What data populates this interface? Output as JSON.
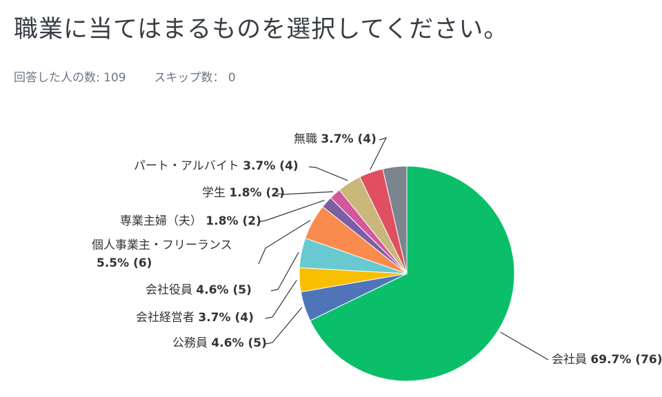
{
  "question": "職業に当てはまるものを選択してください。",
  "stats": {
    "answered_label": "回答した人の数:",
    "answered_count": "109",
    "skipped_label": "スキップ数：",
    "skipped_count": "0"
  },
  "chart_data": {
    "type": "pie",
    "start": "12 o'clock",
    "direction": "clockwise",
    "slices": [
      {
        "name": "会社員",
        "percent": 69.7,
        "count": 76,
        "pct_label": "69.7% (76)",
        "color": "#0bbf6a"
      },
      {
        "name": "公務員",
        "percent": 4.6,
        "count": 5,
        "pct_label": "4.6% (5)",
        "color": "#4f75b8"
      },
      {
        "name": "会社経営者",
        "percent": 3.7,
        "count": 4,
        "pct_label": "3.7% (4)",
        "color": "#f8bf00"
      },
      {
        "name": "会社役員",
        "percent": 4.6,
        "count": 5,
        "pct_label": "4.6% (5)",
        "color": "#68c9d0"
      },
      {
        "name": "個人事業主・フリーランス",
        "percent": 5.5,
        "count": 6,
        "pct_label": "5.5% (6)",
        "color": "#f88b4d"
      },
      {
        "name": "専業主婦（夫）",
        "percent": 1.8,
        "count": 2,
        "pct_label": "1.8% (2)",
        "color": "#7b5ea3"
      },
      {
        "name": "学生",
        "percent": 1.8,
        "count": 2,
        "pct_label": "1.8% (2)",
        "color": "#d25a9c"
      },
      {
        "name": "パート・アルバイト",
        "percent": 3.7,
        "count": 4,
        "pct_label": "3.7% (4)",
        "color": "#c9b77c"
      },
      {
        "name": "無職",
        "percent": 3.7,
        "count": 4,
        "pct_label": "3.7% (4)",
        "color": "#df4f60"
      },
      {
        "name": "",
        "percent": 3.7,
        "count": 4,
        "pct_label": "",
        "color": "#7c858d"
      }
    ]
  }
}
